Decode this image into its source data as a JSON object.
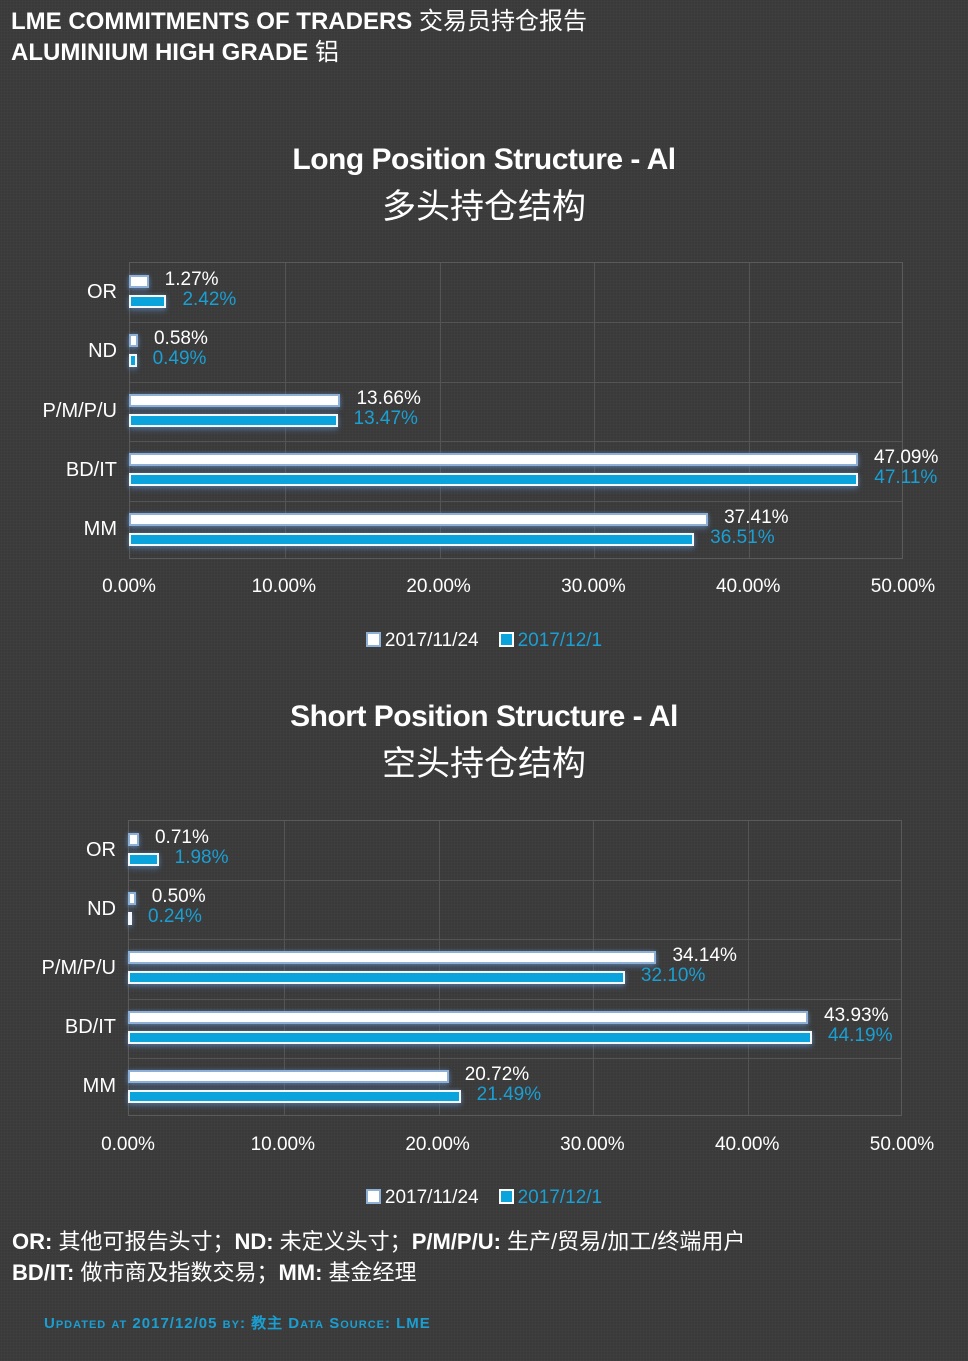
{
  "header": {
    "line1_en": "LME COMMITMENTS OF TRADERS",
    "line1_cn": "交易员持仓报告",
    "line2_en": "ALUMINIUM HIGH GRADE",
    "line2_cn": "铝"
  },
  "colors": {
    "background": "#3a3a3a",
    "series_2017_11_24": "#ffffff",
    "series_2017_12_1": "#0aa3dc",
    "accent_text": "#1a9fd3"
  },
  "chart_data": [
    {
      "type": "bar",
      "orientation": "horizontal",
      "title": "Long Position Structure - Al",
      "subtitle": "多头持仓结构",
      "categories": [
        "OR",
        "ND",
        "P/M/P/U",
        "BD/IT",
        "MM"
      ],
      "series": [
        {
          "name": "2017/11/24",
          "values": [
            1.27,
            0.58,
            13.66,
            47.09,
            37.41
          ],
          "labels": [
            "1.27%",
            "0.58%",
            "13.66%",
            "47.09%",
            "37.41%"
          ]
        },
        {
          "name": "2017/12/1",
          "values": [
            2.42,
            0.49,
            13.47,
            47.11,
            36.51
          ],
          "labels": [
            "2.42%",
            "0.49%",
            "13.47%",
            "47.11%",
            "36.51%"
          ]
        }
      ],
      "xlabel": "",
      "ylabel": "",
      "xlim": [
        0,
        50
      ],
      "x_ticks": [
        "0.00%",
        "10.00%",
        "20.00%",
        "30.00%",
        "40.00%",
        "50.00%"
      ],
      "grid": true,
      "legend_position": "bottom"
    },
    {
      "type": "bar",
      "orientation": "horizontal",
      "title": "Short Position Structure - Al",
      "subtitle": "空头持仓结构",
      "categories": [
        "OR",
        "ND",
        "P/M/P/U",
        "BD/IT",
        "MM"
      ],
      "series": [
        {
          "name": "2017/11/24",
          "values": [
            0.71,
            0.5,
            34.14,
            43.93,
            20.72
          ],
          "labels": [
            "0.71%",
            "0.50%",
            "34.14%",
            "43.93%",
            "20.72%"
          ]
        },
        {
          "name": "2017/12/1",
          "values": [
            1.98,
            0.24,
            32.1,
            44.19,
            21.49
          ],
          "labels": [
            "1.98%",
            "0.24%",
            "32.10%",
            "44.19%",
            "21.49%"
          ]
        }
      ],
      "xlabel": "",
      "ylabel": "",
      "xlim": [
        0,
        50
      ],
      "x_ticks": [
        "0.00%",
        "10.00%",
        "20.00%",
        "30.00%",
        "40.00%",
        "50.00%"
      ],
      "grid": true,
      "legend_position": "bottom"
    }
  ],
  "legend": [
    "2017/11/24",
    "2017/12/1"
  ],
  "notes": {
    "line1": [
      {
        "key": "OR:",
        "text": " 其他可报告头寸；"
      },
      {
        "key": "ND:",
        "text": " 未定义头寸；"
      },
      {
        "key": "P/M/P/U:",
        "text": " 生产/贸易/加工/终端用户"
      }
    ],
    "line2": [
      {
        "key": "BD/IT:",
        "text": " 做市商及指数交易；"
      },
      {
        "key": "MM:",
        "text": " 基金经理"
      }
    ]
  },
  "footer": "Updated at 2017/12/05 by: 教主 Data Source: LME"
}
